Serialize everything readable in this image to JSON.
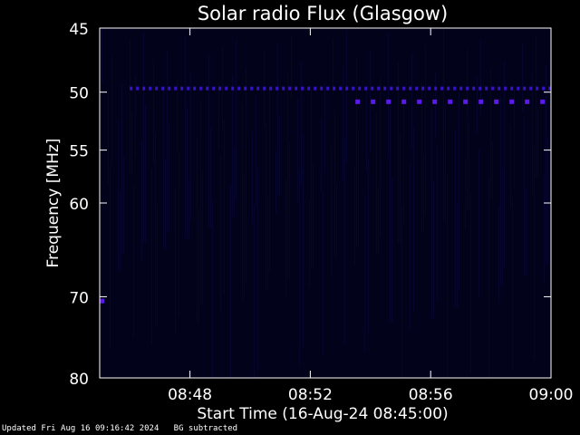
{
  "colors": {
    "background": "#000000",
    "axes": "#ffffff",
    "text": "#ffffff",
    "plot_background": "#02021a",
    "signal": "#3a10c8",
    "signal_bright": "#5a1ae8"
  },
  "chart_data": {
    "type": "heatmap",
    "title": "Solar radio Flux (Glasgow)",
    "xlabel": "Start Time (16-Aug-24 08:45:00)",
    "ylabel": "Frequency [MHz]",
    "x_unit": "minutes after 08:45:00",
    "xlim": [
      0,
      15
    ],
    "ylim": [
      45,
      80
    ],
    "y_scale": "log",
    "y_inverted": true,
    "x_ticks": [
      {
        "value": 3,
        "label": "08:48"
      },
      {
        "value": 7,
        "label": "08:52"
      },
      {
        "value": 11,
        "label": "08:56"
      },
      {
        "value": 15,
        "label": "09:00"
      }
    ],
    "y_ticks": [
      {
        "value": 45,
        "label": "45"
      },
      {
        "value": 50,
        "label": "50"
      },
      {
        "value": 55,
        "label": "55"
      },
      {
        "value": 60,
        "label": "60"
      },
      {
        "value": 70,
        "label": "70"
      },
      {
        "value": 80,
        "label": "80"
      }
    ],
    "emission_bands": [
      {
        "frequency_mhz": 49.7,
        "t_start": 1.0,
        "t_end": 15.0,
        "intensity": "medium"
      },
      {
        "frequency_mhz": 50.8,
        "t_start": 8.5,
        "t_end": 15.0,
        "intensity": "high"
      },
      {
        "frequency_mhz": 70.5,
        "t_start": 0.0,
        "t_end": 0.3,
        "intensity": "high"
      }
    ],
    "grid": false
  },
  "footer": {
    "updated": "Updated Fri Aug 16 09:16:42 2024",
    "note": "BG subtracted"
  }
}
